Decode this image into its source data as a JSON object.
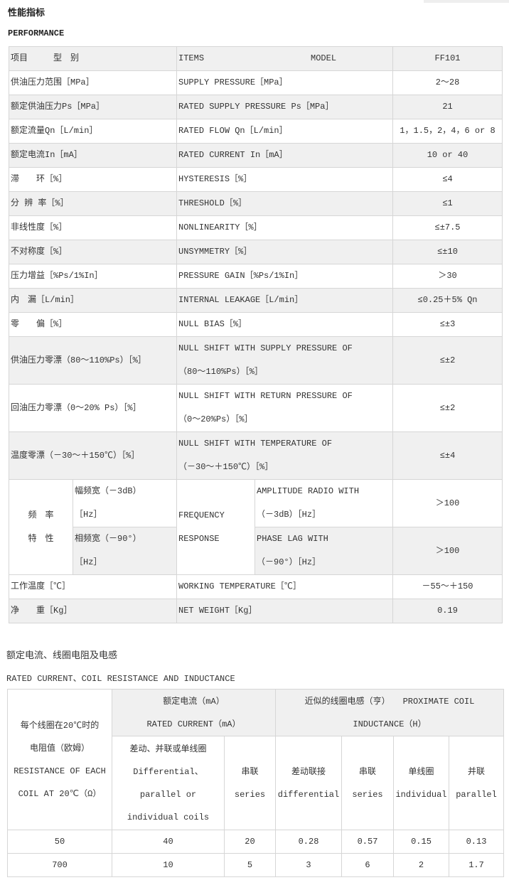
{
  "title_cn": "性能指标",
  "title_en": "PERFORMANCE",
  "perf_header": {
    "cn": "项目　　　型　别",
    "en_items": "ITEMS",
    "en_model": "MODEL",
    "value": "FF101"
  },
  "perf_rows": [
    {
      "cn": "供油压力范围［MPa］",
      "en": "SUPPLY PRESSURE［MPa］",
      "value": "2～28"
    },
    {
      "cn": "额定供油压力Ps［MPa］",
      "en": "RATED SUPPLY PRESSURE Ps［MPa］",
      "value": "21"
    },
    {
      "cn": "额定流量Qn［L/min］",
      "en": "RATED  FLOW  Qn［L/min］",
      "value": "1，1.5，2，4，6 or 8"
    },
    {
      "cn": "额定电流In［mA］",
      "en": "RATED  CURRENT  In［mA］",
      "value": "10 or 40"
    },
    {
      "cn": "滞　　环［%］",
      "en": "HYSTERESIS［%］",
      "value": "≤4"
    },
    {
      "cn": "分 辨 率［%］",
      "en": "THRESHOLD［%］",
      "value": "≤1"
    },
    {
      "cn": "非线性度［%］",
      "en": "NONLINEARITY［%］",
      "value": "≤±7.5"
    },
    {
      "cn": "不对称度［%］",
      "en": "UNSYMMETRY［%］",
      "value": "≤±10"
    },
    {
      "cn": "压力增益［%Ps/1%In］",
      "en": "PRESSURE  GAIN［%Ps/1%In］",
      "value": "＞30"
    },
    {
      "cn": "内　漏［L/min］",
      "en": "INTERNAL  LEAKAGE［L/min］",
      "value": "≤0.25＋5% Qn"
    },
    {
      "cn": "零　　偏［%］",
      "en": "NULL  BIAS［%］",
      "value": "≤±3"
    },
    {
      "cn": "供油压力零漂（80～110%Ps）［%］",
      "en1": "NULL SHIFT WITH SUPPLY PRESSURE OF",
      "en2": "（80～110%Ps）［%］",
      "value": "≤±2"
    },
    {
      "cn": "回油压力零漂（0～20% Ps）［%］",
      "en1": "NULL SHIFT WITH RETURN PRESSURE OF",
      "en2": "（0～20%Ps）［%］",
      "value": "≤±2"
    },
    {
      "cn": "温度零漂（－30～＋150℃）［%］",
      "en1": "NULL SHIFT WITH TEMPERATURE OF",
      "en2": "（－30～＋150℃）［%］",
      "value": "≤±4"
    }
  ],
  "freq": {
    "cn1": "频　率",
    "cn2": "特　性",
    "amp_cn1": "幅频宽（－3dB）",
    "amp_cn2": "［Hz］",
    "phase_cn1": "相频宽（－90°）",
    "phase_cn2": "［Hz］",
    "en1": "FREQUENCY",
    "en2": "RESPONSE",
    "amp_en1": "AMPLITUDE RADIO WITH",
    "amp_en2": "（－3dB）［Hz］",
    "phase_en1": "PHASE LAG WITH",
    "phase_en2": "（－90°）［Hz］",
    "amp_value": "＞100",
    "phase_value": "＞100"
  },
  "perf_tail": [
    {
      "cn": "工作温度［℃］",
      "en": "WORKING TEMPERATURE［℃］",
      "value": "－55～＋150"
    },
    {
      "cn": "净　　重［Kg］",
      "en": "NET WEIGHT［Kg］",
      "value": "0.19"
    }
  ],
  "coil_title_cn": "额定电流、线圈电阻及电感",
  "coil_title_en": "RATED   CURRENT、COIL   RESISTANCE   AND   INDUCTANCE",
  "coil": {
    "res_cn1": "每个线圈在20℃时的",
    "res_cn2": "电阻值（欧姆）",
    "res_en1": "RESISTANCE OF EACH",
    "res_en2": "COIL AT 20℃（Ω）",
    "cur_cn": "额定电流（mA）",
    "cur_en": "RATED   CURRENT（mA）",
    "ind_cn": "近似的线圈电感（亨）　　PROXIMATE  COIL",
    "ind_en": "INDUCTANCE（H）",
    "col_diff_cn": "差动、并联或单线圈",
    "col_diff_en1": "Differential、",
    "col_diff_en2": "parallel or",
    "col_diff_en3": "individual coils",
    "col_series_cn": "串联",
    "col_series_en": "series",
    "ind_diff_cn": "差动联接",
    "ind_diff_en": "differential",
    "ind_series_cn": "串联",
    "ind_series_en": "series",
    "ind_ind_cn": "单线圈",
    "ind_ind_en": "individual",
    "ind_par_cn": "并联",
    "ind_par_en": "parallel",
    "rows": [
      [
        "50",
        "40",
        "20",
        "0.28",
        "0.57",
        "0.15",
        "0.13"
      ],
      [
        "700",
        "10",
        "5",
        "3",
        "6",
        "2",
        "1.7"
      ]
    ]
  }
}
